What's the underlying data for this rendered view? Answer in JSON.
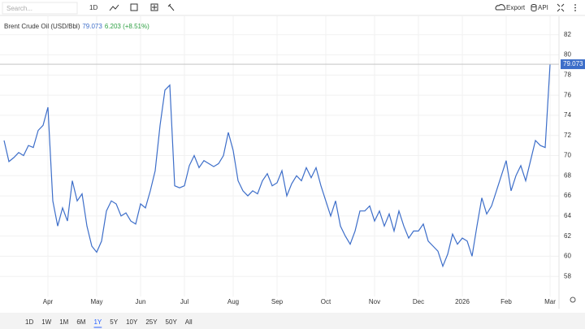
{
  "toolbar": {
    "search_placeholder": "Search...",
    "interval": "1D",
    "export": "Export",
    "api": "API"
  },
  "ranges": [
    "1D",
    "1W",
    "1M",
    "6M",
    "1Y",
    "5Y",
    "10Y",
    "25Y",
    "50Y",
    "All"
  ],
  "selected_range": "1Y",
  "chart_data": {
    "type": "line",
    "grid": true,
    "series": [
      {
        "name": "Brent Crude Oil (USD/Bbl)",
        "color": "#3d6ec9",
        "change": "6.203 (+8.51%)",
        "change_color": "#2ea043",
        "values": [
          71.5,
          69.4,
          69.8,
          70.3,
          70.0,
          71.0,
          70.8,
          72.5,
          73.0,
          74.8,
          65.5,
          63.0,
          64.8,
          63.5,
          67.5,
          65.5,
          66.2,
          63.0,
          61.0,
          60.4,
          61.5,
          64.5,
          65.5,
          65.2,
          64.0,
          64.3,
          63.5,
          63.2,
          65.2,
          64.8,
          66.5,
          68.5,
          73.0,
          76.5,
          77.0,
          67.0,
          66.8,
          67.0,
          69.0,
          70.0,
          68.8,
          69.5,
          69.2,
          68.9,
          69.2,
          70.0,
          72.3,
          70.5,
          67.5,
          66.5,
          66.0,
          66.5,
          66.2,
          67.5,
          68.2,
          67.0,
          67.3,
          68.5,
          66.0,
          67.2,
          68.0,
          67.5,
          68.8,
          67.8,
          68.8,
          67.0,
          65.5,
          64.0,
          65.5,
          63.0,
          62.0,
          61.2,
          62.5,
          64.5,
          64.5,
          65.0,
          63.5,
          64.5,
          63.0,
          64.2,
          62.5,
          64.5,
          63.0,
          61.8,
          62.5,
          62.5,
          63.2,
          61.5,
          61.0,
          60.5,
          59.0,
          60.2,
          62.2,
          61.2,
          61.8,
          61.5,
          60.0,
          63.0,
          65.8,
          64.2,
          65.0,
          66.5,
          68.0,
          69.5,
          66.5,
          68.0,
          69.0,
          67.5,
          69.5,
          71.5,
          71.0,
          70.8,
          79.073
        ]
      }
    ],
    "categories": [
      null,
      null,
      null,
      null,
      null,
      null,
      null,
      null,
      null,
      "Apr",
      null,
      null,
      null,
      null,
      null,
      null,
      null,
      null,
      null,
      "May",
      null,
      null,
      null,
      null,
      null,
      null,
      null,
      null,
      "Jun",
      null,
      null,
      null,
      null,
      null,
      null,
      null,
      null,
      "Jul",
      null,
      null,
      null,
      null,
      null,
      null,
      null,
      null,
      null,
      "Aug",
      null,
      null,
      null,
      null,
      null,
      null,
      null,
      null,
      "Sep",
      null,
      null,
      null,
      null,
      null,
      null,
      null,
      null,
      null,
      "Oct",
      null,
      null,
      null,
      null,
      null,
      null,
      null,
      null,
      null,
      "Nov",
      null,
      null,
      null,
      null,
      null,
      null,
      null,
      null,
      "Dec",
      null,
      null,
      null,
      null,
      null,
      null,
      null,
      null,
      "2026",
      null,
      null,
      null,
      null,
      null,
      null,
      null,
      null,
      "Feb",
      null,
      null,
      null,
      null,
      null,
      null,
      null,
      null,
      "Mar"
    ],
    "ylim": [
      56,
      84
    ],
    "yticks": [
      58,
      60,
      62,
      64,
      66,
      68,
      70,
      72,
      74,
      76,
      78,
      80,
      82
    ]
  }
}
